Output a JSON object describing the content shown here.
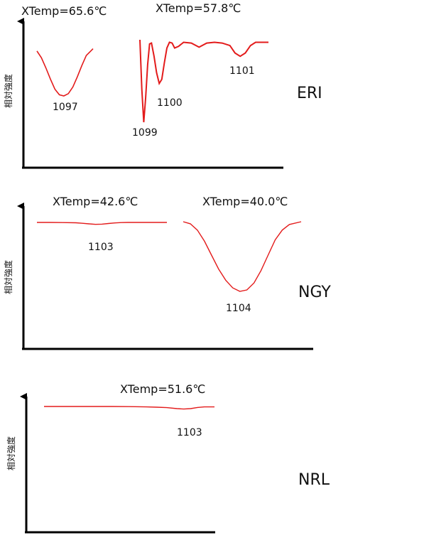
{
  "chart_data": [
    {
      "type": "line",
      "station": "ERI",
      "ylabel": "相対強度",
      "series": [
        {
          "label": "XTemp=65.6℃",
          "x": [
            0,
            0.08,
            0.16,
            0.24,
            0.32,
            0.4,
            0.48,
            0.56,
            0.64,
            0.72,
            0.8,
            0.88,
            1.0
          ],
          "y": [
            0.8,
            0.68,
            0.5,
            0.3,
            0.12,
            0.02,
            0.0,
            0.04,
            0.16,
            0.34,
            0.54,
            0.72,
            0.84
          ],
          "peaks": [
            {
              "label": "1097",
              "x": 0.46
            }
          ]
        },
        {
          "label": "XTemp=57.8℃",
          "x": [
            0,
            0.015,
            0.03,
            0.045,
            0.06,
            0.075,
            0.09,
            0.11,
            0.13,
            0.15,
            0.17,
            0.19,
            0.21,
            0.23,
            0.25,
            0.27,
            0.3,
            0.34,
            0.4,
            0.46,
            0.52,
            0.58,
            0.64,
            0.7,
            0.74,
            0.78,
            0.82,
            0.86,
            0.9,
            0.95,
            1.0
          ],
          "y": [
            1.0,
            0.4,
            0.0,
            0.3,
            0.7,
            0.95,
            0.96,
            0.8,
            0.6,
            0.47,
            0.52,
            0.72,
            0.9,
            0.97,
            0.96,
            0.9,
            0.92,
            0.97,
            0.96,
            0.91,
            0.96,
            0.97,
            0.96,
            0.93,
            0.84,
            0.8,
            0.84,
            0.93,
            0.97,
            0.97,
            0.97
          ],
          "peaks": [
            {
              "label": "1099",
              "x": 0.03
            },
            {
              "label": "1100",
              "x": 0.15
            },
            {
              "label": "1101",
              "x": 0.78
            }
          ]
        }
      ]
    },
    {
      "type": "line",
      "station": "NGY",
      "ylabel": "相対強度",
      "series": [
        {
          "label": "XTemp=42.6℃",
          "x": [
            0,
            0.1,
            0.2,
            0.3,
            0.35,
            0.4,
            0.45,
            0.5,
            0.55,
            0.6,
            0.65,
            0.7,
            0.8,
            0.9,
            1.0
          ],
          "y": [
            1.0,
            1.0,
            0.99,
            0.97,
            0.93,
            0.88,
            0.84,
            0.86,
            0.91,
            0.96,
            0.99,
            1.0,
            1.0,
            1.0,
            1.0
          ],
          "peaks": [
            {
              "label": "1103",
              "x": 0.46
            }
          ]
        },
        {
          "label": "XTemp=40.0℃",
          "x": [
            0,
            0.06,
            0.12,
            0.18,
            0.24,
            0.3,
            0.36,
            0.42,
            0.48,
            0.54,
            0.6,
            0.66,
            0.72,
            0.78,
            0.84,
            0.9,
            1.0
          ],
          "y": [
            1.0,
            0.97,
            0.88,
            0.72,
            0.52,
            0.32,
            0.16,
            0.05,
            0.0,
            0.02,
            0.12,
            0.3,
            0.52,
            0.74,
            0.88,
            0.96,
            1.0
          ],
          "peaks": [
            {
              "label": "1104",
              "x": 0.48
            }
          ]
        }
      ]
    },
    {
      "type": "line",
      "station": "NRL",
      "ylabel": "相対強度",
      "series": [
        {
          "label": "XTemp=51.6℃",
          "x": [
            0,
            0.1,
            0.2,
            0.3,
            0.4,
            0.5,
            0.6,
            0.66,
            0.72,
            0.78,
            0.82,
            0.86,
            0.9,
            0.94,
            1.0
          ],
          "y": [
            1.0,
            1.0,
            1.0,
            1.0,
            1.0,
            0.99,
            0.97,
            0.95,
            0.92,
            0.85,
            0.82,
            0.85,
            0.93,
            0.97,
            0.97
          ],
          "peaks": [
            {
              "label": "1103",
              "x": 0.84
            }
          ]
        }
      ]
    }
  ]
}
